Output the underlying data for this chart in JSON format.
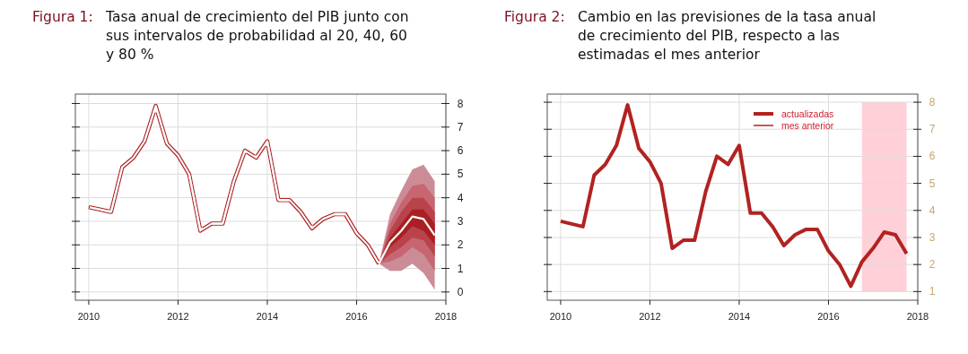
{
  "chart_data": [
    {
      "type": "line",
      "title": "Figura 1: Tasa anual de crecimiento del PIB junto con sus intervalos de probabilidad al 20, 40, 60 y 80 %",
      "xlim": [
        2009.7,
        2018
      ],
      "xticks": [
        2010,
        2012,
        2014,
        2016,
        2018
      ],
      "ylim": [
        -0.35,
        8.4
      ],
      "yticks": [
        0,
        1,
        2,
        3,
        4,
        5,
        6,
        7,
        8
      ],
      "grid": true,
      "legend": false,
      "series": [
        {
          "color": "#b22222",
          "x": [
            2010,
            2010.25,
            2010.5,
            2010.75,
            2011,
            2011.25,
            2011.5,
            2011.75,
            2012,
            2012.25,
            2012.5,
            2012.75,
            2013,
            2013.25,
            2013.5,
            2013.75,
            2014,
            2014.25,
            2014.5,
            2014.75,
            2015,
            2015.25,
            2015.5,
            2015.75,
            2016,
            2016.25,
            2016.5
          ],
          "values": [
            3.6,
            3.5,
            3.4,
            5.3,
            5.7,
            6.4,
            7.9,
            6.3,
            5.8,
            5.0,
            2.6,
            2.9,
            2.9,
            4.7,
            6.0,
            5.7,
            6.4,
            3.9,
            3.9,
            3.4,
            2.7,
            3.1,
            3.3,
            3.3,
            2.5,
            2.0,
            1.2
          ]
        },
        {
          "color": "#cc8c97",
          "x": [
            2016.5,
            2016.75,
            2017,
            2017.25,
            2017.5,
            2017.75
          ],
          "lower": [
            1.2,
            0.9,
            0.9,
            1.2,
            0.8,
            0.1
          ],
          "upper": [
            1.2,
            3.3,
            4.3,
            5.2,
            5.4,
            4.7
          ],
          "values": [
            null,
            null,
            null,
            null,
            null,
            null
          ]
        },
        {
          "color": "#c76670",
          "x": [
            2016.5,
            2016.75,
            2017,
            2017.25,
            2017.5,
            2017.75
          ],
          "lower": [
            1.2,
            1.3,
            1.5,
            1.9,
            1.6,
            0.9
          ],
          "upper": [
            1.2,
            2.9,
            3.8,
            4.5,
            4.6,
            4.0
          ],
          "values": [
            null,
            null,
            null,
            null,
            null,
            null
          ]
        },
        {
          "color": "#b9434a",
          "x": [
            2016.5,
            2016.75,
            2017,
            2017.25,
            2017.5,
            2017.75
          ],
          "lower": [
            1.2,
            1.6,
            1.9,
            2.3,
            2.2,
            1.5
          ],
          "upper": [
            1.2,
            2.6,
            3.4,
            4.0,
            4.0,
            3.4
          ],
          "values": [
            null,
            null,
            null,
            null,
            null,
            null
          ]
        },
        {
          "color": "#a91f22",
          "x": [
            2016.5,
            2016.75,
            2017,
            2017.25,
            2017.5,
            2017.75
          ],
          "lower": [
            1.2,
            1.9,
            2.3,
            2.8,
            2.6,
            2.0
          ],
          "upper": [
            1.2,
            2.3,
            2.9,
            3.5,
            3.5,
            2.9
          ],
          "values": [
            null,
            null,
            null,
            null,
            null,
            null
          ]
        },
        {
          "color": "#ffffff",
          "x": [
            2016.5,
            2016.75,
            2017,
            2017.25,
            2017.5,
            2017.75
          ],
          "values": [
            1.2,
            2.1,
            2.6,
            3.2,
            3.1,
            2.4
          ]
        }
      ]
    },
    {
      "type": "line",
      "title": "Figura 2: Cambio en las previsiones de la tasa anual de crecimiento del PIB, respecto a las estimadas el mes anterior",
      "xlim": [
        2009.7,
        2018
      ],
      "xticks": [
        2010,
        2012,
        2014,
        2016,
        2018
      ],
      "ylim": [
        0.68,
        8.3
      ],
      "yticks": [
        1,
        2,
        3,
        4,
        5,
        6,
        7,
        8
      ],
      "grid": true,
      "legend": "top",
      "x": [
        2010,
        2010.25,
        2010.5,
        2010.75,
        2011,
        2011.25,
        2011.5,
        2011.75,
        2012,
        2012.25,
        2012.5,
        2012.75,
        2013,
        2013.25,
        2013.5,
        2013.75,
        2014,
        2014.25,
        2014.5,
        2014.75,
        2015,
        2015.25,
        2015.5,
        2015.75,
        2016,
        2016.25,
        2016.5,
        2016.75,
        2017,
        2017.25,
        2017.5,
        2017.75
      ],
      "bands": [
        {
          "axis": "x",
          "from": 2016.75,
          "to": 2017.75,
          "color": "#ffc0cb"
        }
      ],
      "series": [
        {
          "name": "actualizadas",
          "color": "#b22222",
          "values": [
            3.6,
            3.5,
            3.4,
            5.3,
            5.7,
            6.4,
            7.9,
            6.3,
            5.8,
            5.0,
            2.6,
            2.9,
            2.9,
            4.7,
            6.0,
            5.7,
            6.4,
            3.9,
            3.9,
            3.4,
            2.7,
            3.1,
            3.3,
            3.3,
            2.5,
            2.0,
            1.2,
            2.1,
            2.6,
            3.2,
            3.1,
            2.4
          ]
        },
        {
          "name": "mes anterior",
          "color": "#b22222",
          "values": [
            null,
            null,
            null,
            null,
            null,
            null,
            null,
            null,
            null,
            null,
            null,
            null,
            null,
            null,
            null,
            null,
            null,
            null,
            null,
            null,
            null,
            null,
            null,
            null,
            null,
            null,
            null,
            null,
            null,
            null,
            null,
            null
          ]
        }
      ]
    }
  ]
}
